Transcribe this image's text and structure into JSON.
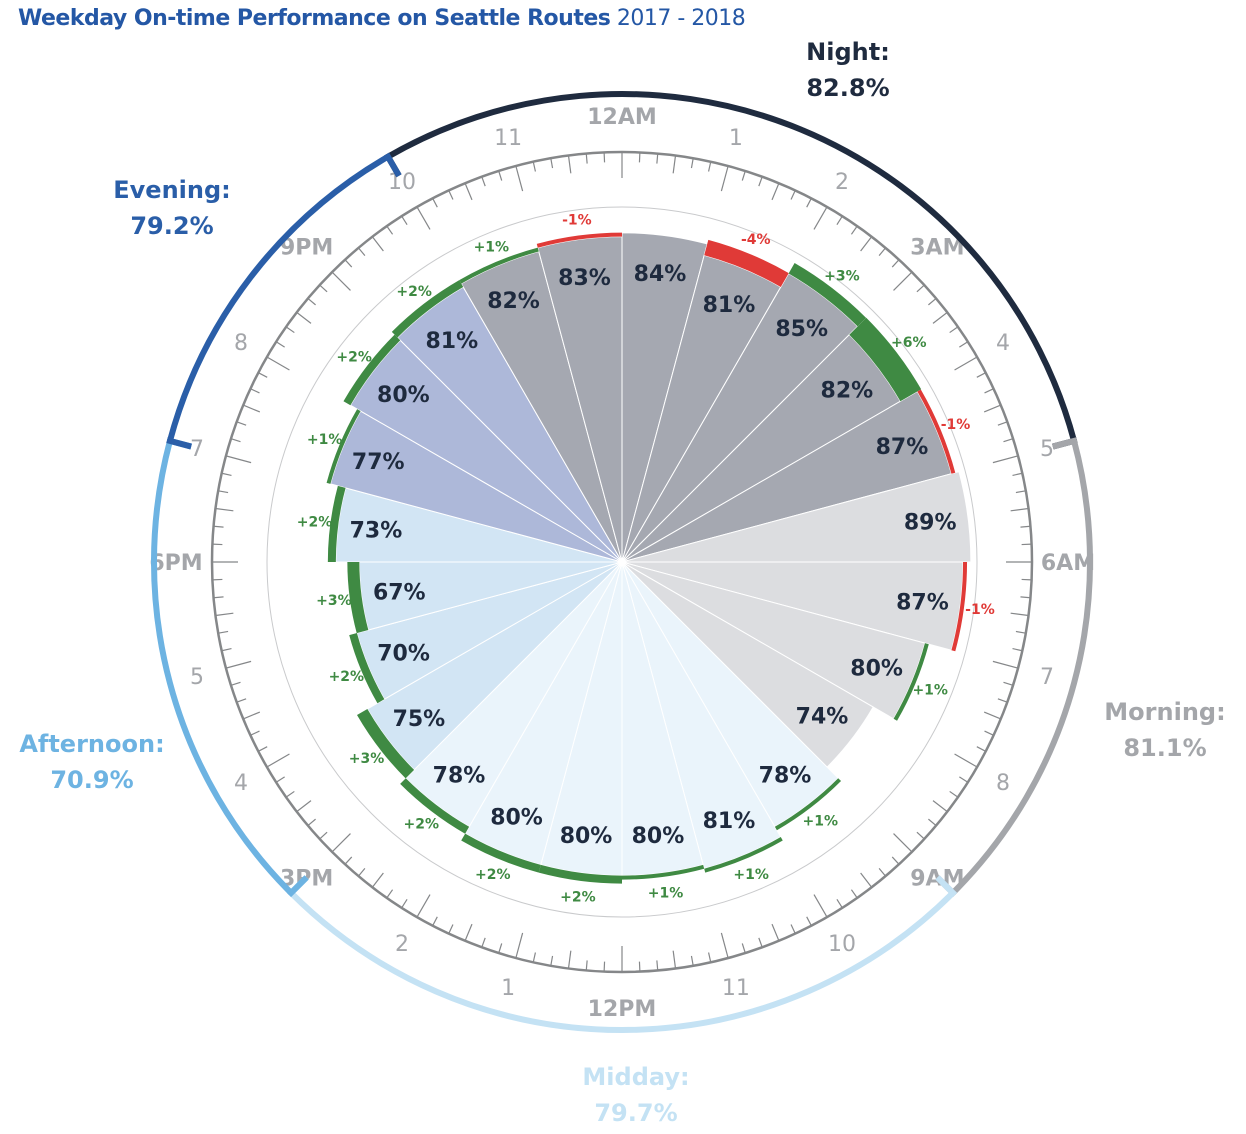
{
  "title": {
    "bold": "Weekday On-time Performance on Seattle Routes",
    "years": "2017 - 2018"
  },
  "colors": {
    "title": "#2457a5",
    "positive_change": "#3f8a43",
    "negative_change": "#e03a37",
    "value_text": "#1e2a3e",
    "hour_text": "#a4a6aa",
    "tick": "#858789"
  },
  "chart_data": {
    "type": "polar-bar",
    "title": "Weekday On-time Performance on Seattle Routes 2017 - 2018",
    "unit": "%",
    "start": "12AM at top, clockwise",
    "hour_labels": [
      "12AM",
      "1",
      "2",
      "3AM",
      "4",
      "5",
      "6AM",
      "7",
      "8",
      "9AM",
      "10",
      "11",
      "12PM",
      "1",
      "2",
      "3PM",
      "4",
      "5",
      "6PM",
      "7",
      "8",
      "9PM",
      "10",
      "11"
    ],
    "major_hours": [
      0,
      3,
      6,
      9,
      12,
      15,
      18,
      21
    ],
    "hours": [
      {
        "start": "12AM",
        "value": 84,
        "change": null,
        "period": "night"
      },
      {
        "start": "1AM",
        "value": 81,
        "change": -4,
        "period": "night"
      },
      {
        "start": "2AM",
        "value": 85,
        "change": 3,
        "period": "night"
      },
      {
        "start": "3AM",
        "value": 82,
        "change": 6,
        "period": "night"
      },
      {
        "start": "4AM",
        "value": 87,
        "change": -1,
        "period": "night"
      },
      {
        "start": "5AM",
        "value": 89,
        "change": null,
        "period": "morning"
      },
      {
        "start": "6AM",
        "value": 87,
        "change": -1,
        "period": "morning"
      },
      {
        "start": "7AM",
        "value": 80,
        "change": 1,
        "period": "morning"
      },
      {
        "start": "8AM",
        "value": 74,
        "change": null,
        "period": "morning"
      },
      {
        "start": "9AM",
        "value": 78,
        "change": 1,
        "period": "midday"
      },
      {
        "start": "10AM",
        "value": 81,
        "change": 1,
        "period": "midday"
      },
      {
        "start": "11AM",
        "value": 80,
        "change": 1,
        "period": "midday"
      },
      {
        "start": "12PM",
        "value": 80,
        "change": 2,
        "period": "midday"
      },
      {
        "start": "1PM",
        "value": 80,
        "change": 2,
        "period": "midday"
      },
      {
        "start": "2PM",
        "value": 78,
        "change": 2,
        "period": "midday"
      },
      {
        "start": "3PM",
        "value": 75,
        "change": 3,
        "period": "afternoon"
      },
      {
        "start": "4PM",
        "value": 70,
        "change": 2,
        "period": "afternoon"
      },
      {
        "start": "5PM",
        "value": 67,
        "change": 3,
        "period": "afternoon"
      },
      {
        "start": "6PM",
        "value": 73,
        "change": 2,
        "period": "afternoon"
      },
      {
        "start": "7PM",
        "value": 77,
        "change": 1,
        "period": "evening"
      },
      {
        "start": "8PM",
        "value": 80,
        "change": 2,
        "period": "evening"
      },
      {
        "start": "9PM",
        "value": 81,
        "change": 2,
        "period": "evening"
      },
      {
        "start": "10PM",
        "value": 82,
        "change": 1,
        "period": "night"
      },
      {
        "start": "11PM",
        "value": 83,
        "change": -1,
        "period": "night"
      }
    ],
    "periods": [
      {
        "key": "night",
        "label": "Night:",
        "value": "82.8%",
        "from_hour": 22,
        "to_hour": 5,
        "color": "#1f2b3f",
        "wedge_color": "#a5a8b1"
      },
      {
        "key": "morning",
        "label": "Morning:",
        "value": "81.1%",
        "from_hour": 5,
        "to_hour": 9,
        "color": "#a4a6aa",
        "wedge_color": "#dcdde0"
      },
      {
        "key": "midday",
        "label": "Midday:",
        "value": "79.7%",
        "from_hour": 9,
        "to_hour": 15,
        "color": "#c4e2f4",
        "wedge_color": "#eaf4fb"
      },
      {
        "key": "afternoon",
        "label": "Afternoon:",
        "value": "70.9%",
        "from_hour": 15,
        "to_hour": 19,
        "color": "#6db3e2",
        "wedge_color": "#d2e5f4"
      },
      {
        "key": "evening",
        "label": "Evening:",
        "value": "79.2%",
        "from_hour": 19,
        "to_hour": 22,
        "color": "#2a5ea8",
        "wedge_color": "#adb8d9"
      }
    ]
  }
}
